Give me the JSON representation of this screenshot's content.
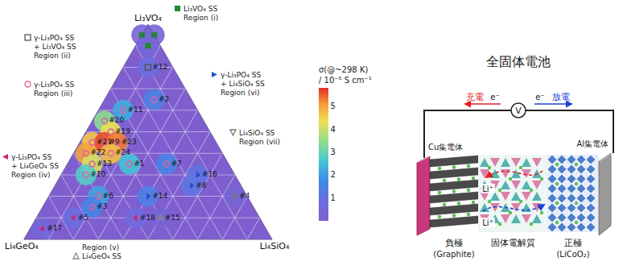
{
  "chart_data": {
    "type": "ternary",
    "axes": {
      "a": "Li₃VO₄",
      "b": "Li₄GeO₄",
      "c": "Li₄SiO₄"
    },
    "grid": true,
    "tick_labels": false,
    "colorbar": {
      "title": "σ(@~298 K) / 10⁻⁵ S cm⁻¹",
      "range": [
        0,
        5.8
      ],
      "ticks": [
        1,
        2,
        3,
        4,
        5
      ]
    },
    "regions": [
      {
        "id": "i",
        "text": [
          "Li₃VO₄ SS"
        ],
        "region": "Region (i)",
        "marker": "square",
        "color": "#1a8a2a"
      },
      {
        "id": "ii",
        "text": [
          "γ-Li₃PO₄ SS",
          "+ Li₃VO₄ SS"
        ],
        "region": "Region (ii)",
        "marker": "square-open",
        "color": "#555555"
      },
      {
        "id": "iii",
        "text": [
          "γ-Li₃PO₄ SS"
        ],
        "region": "Region (iii)",
        "marker": "circle-open",
        "color": "#e0609a"
      },
      {
        "id": "iv",
        "text": [
          "γ-Li₃PO₄ SS",
          "+ Li₄GeO₄ SS"
        ],
        "region": "Region (iv)",
        "marker": "triangle-left",
        "color": "#d0207a"
      },
      {
        "id": "v",
        "text": [
          "Li₄GeO₄ SS"
        ],
        "region": "Region (v)",
        "marker": "triangle-up-open",
        "color": "#888888"
      },
      {
        "id": "vi",
        "text": [
          "γ-Li₃PO₄ SS",
          "+ Li₄SiO₄ SS"
        ],
        "region": "Region (vi)",
        "marker": "triangle-right",
        "color": "#1f4fd0"
      },
      {
        "id": "vii",
        "text": [
          "Li₄SiO₄ SS"
        ],
        "region": "Region (vii)",
        "marker": "triangle-down-open",
        "color": "#777777"
      }
    ],
    "points": [
      {
        "label": null,
        "a": 0.95,
        "b": 0.05,
        "c": 0.0,
        "sigma": 0.3,
        "region": "i"
      },
      {
        "label": null,
        "a": 0.95,
        "b": 0.0,
        "c": 0.05,
        "sigma": 0.3,
        "region": "i"
      },
      {
        "label": null,
        "a": 0.9,
        "b": 0.05,
        "c": 0.05,
        "sigma": 0.4,
        "region": "i"
      },
      {
        "label": "#12",
        "a": 0.8,
        "b": 0.1,
        "c": 0.1,
        "sigma": 0.8,
        "region": "ii"
      },
      {
        "label": "#2",
        "a": 0.65,
        "b": 0.15,
        "c": 0.2,
        "sigma": 1.5,
        "region": "iii"
      },
      {
        "label": "#11",
        "a": 0.6,
        "b": 0.3,
        "c": 0.1,
        "sigma": 2.2,
        "region": "iii"
      },
      {
        "label": "#20",
        "a": 0.55,
        "b": 0.4,
        "c": 0.05,
        "sigma": 3.4,
        "region": "iii"
      },
      {
        "label": "#19",
        "a": 0.5,
        "b": 0.4,
        "c": 0.1,
        "sigma": 4.3,
        "region": "iii"
      },
      {
        "label": "#21",
        "a": 0.45,
        "b": 0.5,
        "c": 0.05,
        "sigma": 4.6,
        "region": "iii"
      },
      {
        "label": "#9",
        "a": 0.45,
        "b": 0.45,
        "c": 0.1,
        "sigma": 5.6,
        "region": "iii"
      },
      {
        "label": "#23",
        "a": 0.45,
        "b": 0.4,
        "c": 0.15,
        "sigma": 5.3,
        "region": "iii"
      },
      {
        "label": "#22",
        "a": 0.4,
        "b": 0.55,
        "c": 0.05,
        "sigma": 5.0,
        "region": "iii"
      },
      {
        "label": "#24",
        "a": 0.4,
        "b": 0.45,
        "c": 0.15,
        "sigma": 4.7,
        "region": "iii"
      },
      {
        "label": "#13",
        "a": 0.35,
        "b": 0.55,
        "c": 0.1,
        "sigma": 4.1,
        "region": "iii"
      },
      {
        "label": "#1",
        "a": 0.35,
        "b": 0.4,
        "c": 0.25,
        "sigma": 2.6,
        "region": "iii"
      },
      {
        "label": "#7",
        "a": 0.35,
        "b": 0.25,
        "c": 0.4,
        "sigma": 1.6,
        "region": "iii"
      },
      {
        "label": "#10",
        "a": 0.3,
        "b": 0.6,
        "c": 0.1,
        "sigma": 2.8,
        "region": "iii"
      },
      {
        "label": "#16",
        "a": 0.3,
        "b": 0.15,
        "c": 0.55,
        "sigma": 1.0,
        "region": "vi"
      },
      {
        "label": "#8",
        "a": 0.25,
        "b": 0.2,
        "c": 0.55,
        "sigma": 1.1,
        "region": "vi"
      },
      {
        "label": "#6",
        "a": 0.2,
        "b": 0.6,
        "c": 0.2,
        "sigma": 2.1,
        "region": "iii"
      },
      {
        "label": "#14",
        "a": 0.2,
        "b": 0.4,
        "c": 0.4,
        "sigma": 1.4,
        "region": "vi"
      },
      {
        "label": "#3",
        "a": 0.15,
        "b": 0.65,
        "c": 0.2,
        "sigma": 1.6,
        "region": "iii"
      },
      {
        "label": "#4",
        "a": 0.2,
        "b": 0.05,
        "c": 0.75,
        "sigma": 0.3,
        "region": "vii"
      },
      {
        "label": "#5",
        "a": 0.1,
        "b": 0.75,
        "c": 0.15,
        "sigma": 0.8,
        "region": "iv"
      },
      {
        "label": "#18",
        "a": 0.1,
        "b": 0.5,
        "c": 0.4,
        "sigma": 0.6,
        "region": "iv"
      },
      {
        "label": "#15",
        "a": 0.1,
        "b": 0.4,
        "c": 0.5,
        "sigma": 0.3,
        "region": "v"
      },
      {
        "label": "#17",
        "a": 0.05,
        "b": 0.9,
        "c": 0.05,
        "sigma": 0.4,
        "region": "iv"
      }
    ]
  },
  "diagram": {
    "title": "全固体電池",
    "circuit": {
      "charge": "充電",
      "discharge": "放電",
      "electrons": [
        "e⁻",
        "e⁻"
      ],
      "meter": "V"
    },
    "collectors": {
      "left": "Cu集電体",
      "right": "Al集電体"
    },
    "ions": [
      "Li⁺",
      "Li⁺"
    ],
    "layers": [
      {
        "name": "負極",
        "material": "(Graphite)"
      },
      {
        "name": "固体電解質"
      },
      {
        "name": "正極",
        "material": "(LiCoO₂)"
      }
    ]
  }
}
